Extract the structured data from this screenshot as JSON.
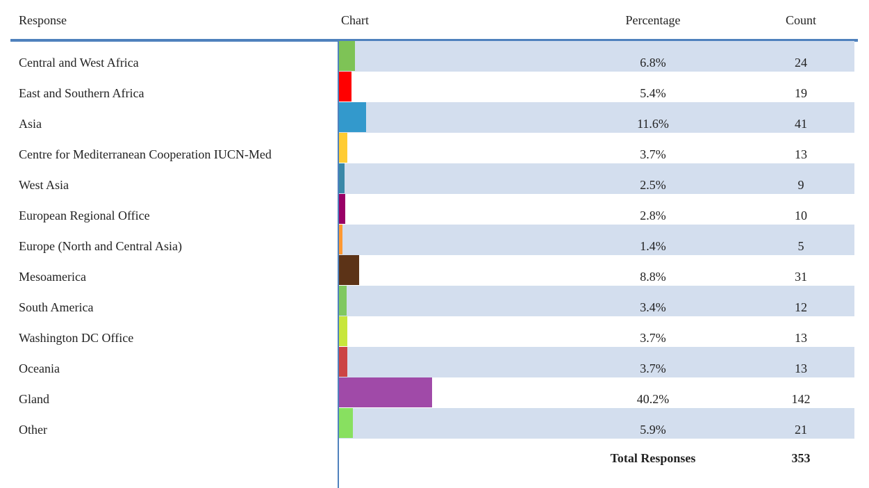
{
  "header": {
    "response": "Response",
    "chart": "Chart",
    "percentage": "Percentage",
    "count": "Count"
  },
  "rows": [
    {
      "response": "Central and West Africa",
      "percentage": 6.8,
      "percentage_label": "6.8%",
      "count": 24,
      "color": "#7ec356"
    },
    {
      "response": "East and Southern Africa",
      "percentage": 5.4,
      "percentage_label": "5.4%",
      "count": 19,
      "color": "#ff0000"
    },
    {
      "response": "Asia",
      "percentage": 11.6,
      "percentage_label": "11.6%",
      "count": 41,
      "color": "#3399cc"
    },
    {
      "response": "Centre for Mediterranean Cooperation IUCN-Med",
      "percentage": 3.7,
      "percentage_label": "3.7%",
      "count": 13,
      "color": "#ffcc33"
    },
    {
      "response": "West Asia",
      "percentage": 2.5,
      "percentage_label": "2.5%",
      "count": 9,
      "color": "#3a88a8"
    },
    {
      "response": "European Regional Office",
      "percentage": 2.8,
      "percentage_label": "2.8%",
      "count": 10,
      "color": "#990066"
    },
    {
      "response": "Europe (North and Central Asia)",
      "percentage": 1.4,
      "percentage_label": "1.4%",
      "count": 5,
      "color": "#ff9933"
    },
    {
      "response": "Mesoamerica",
      "percentage": 8.8,
      "percentage_label": "8.8%",
      "count": 31,
      "color": "#5c3317"
    },
    {
      "response": "South America",
      "percentage": 3.4,
      "percentage_label": "3.4%",
      "count": 12,
      "color": "#80c860"
    },
    {
      "response": "Washington DC Office",
      "percentage": 3.7,
      "percentage_label": "3.7%",
      "count": 13,
      "color": "#c8e63c"
    },
    {
      "response": "Oceania",
      "percentage": 3.7,
      "percentage_label": "3.7%",
      "count": 13,
      "color": "#cc4444"
    },
    {
      "response": "Gland",
      "percentage": 40.2,
      "percentage_label": "40.2%",
      "count": 142,
      "color": "#a04aa8"
    },
    {
      "response": "Other",
      "percentage": 5.9,
      "percentage_label": "5.9%",
      "count": 21,
      "color": "#88e060"
    }
  ],
  "total": {
    "label": "Total Responses",
    "count": 353
  }
}
